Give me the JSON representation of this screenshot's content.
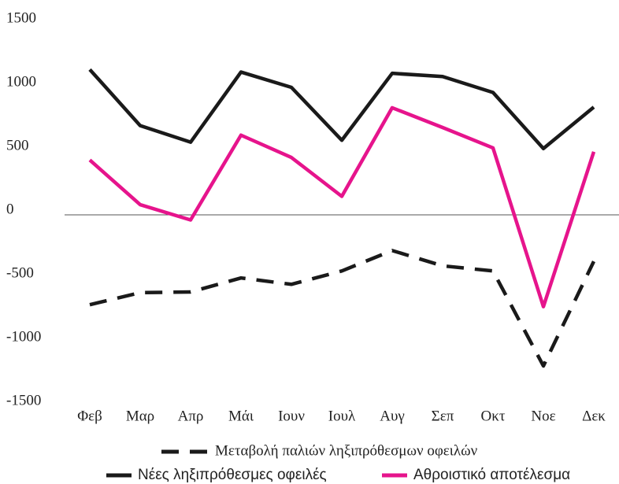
{
  "chart_data": {
    "type": "line",
    "categories": [
      "Φεβ",
      "Μαρ",
      "Απρ",
      "Μάι",
      "Ιουν",
      "Ιουλ",
      "Αυγ",
      "Σεπ",
      "Οκτ",
      "Νοε",
      "Δεκ"
    ],
    "series": [
      {
        "name": "Μεταβολή παλιών ληξιπρόθεσμων οφειλών",
        "color": "#1a1a1a",
        "dash": true,
        "values": [
          -705,
          -610,
          -605,
          -495,
          -545,
          -440,
          -280,
          -400,
          -440,
          -1185,
          -365
        ]
      },
      {
        "name": "Νέες ληξιπρόθεσμες οφειλές",
        "color": "#1a1a1a",
        "dash": false,
        "values": [
          1140,
          700,
          570,
          1120,
          1000,
          585,
          1110,
          1085,
          960,
          520,
          845
        ]
      },
      {
        "name": "Αθροιστικό αποτέλεσμα",
        "color": "#e6148c",
        "dash": false,
        "values": [
          430,
          80,
          -40,
          625,
          450,
          145,
          840,
          685,
          525,
          -720,
          495
        ]
      }
    ],
    "ylim": [
      -1500,
      1500
    ],
    "yticks": [
      -1500,
      -1000,
      -500,
      0,
      500,
      1000,
      1500
    ],
    "grid": false
  }
}
